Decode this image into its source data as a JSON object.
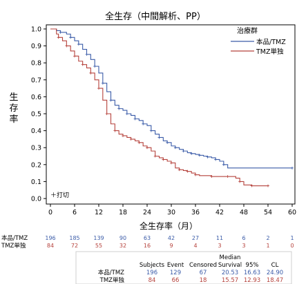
{
  "chart_data": {
    "type": "line",
    "title": "全生存（中間解析、PP）",
    "xlabel": "全生存率（月）",
    "ylabel": "生存率",
    "xlim": [
      0,
      60
    ],
    "ylim": [
      0,
      1.0
    ],
    "x_ticks": [
      "0",
      "6",
      "12",
      "18",
      "24",
      "30",
      "36",
      "42",
      "48",
      "54",
      "60"
    ],
    "y_ticks": [
      "0.0",
      "0.1",
      "0.2",
      "0.3",
      "0.4",
      "0.5",
      "0.6",
      "0.7",
      "0.8",
      "0.9",
      "1.0"
    ],
    "grid": false,
    "legend": {
      "title": "治療群",
      "placement": "top-right",
      "entries": [
        "本品/TMZ",
        "TMZ単独"
      ]
    },
    "censor_note": "＋打切",
    "colors": {
      "treatment": "#3a5ba8",
      "control": "#b5413b"
    },
    "series": [
      {
        "name": "本品/TMZ",
        "color": "#3a5ba8",
        "x": [
          0,
          1.5,
          2.5,
          4,
          5,
          6,
          7,
          8,
          9,
          10,
          11,
          12,
          13,
          14,
          15,
          16,
          17,
          18,
          19,
          20,
          21,
          22,
          23,
          24,
          25,
          26,
          27,
          28,
          29,
          30,
          31,
          32,
          33,
          34,
          35,
          36,
          37,
          38,
          39,
          40,
          41,
          42,
          43,
          44,
          60
        ],
        "y": [
          1.0,
          0.99,
          0.98,
          0.97,
          0.95,
          0.93,
          0.91,
          0.88,
          0.85,
          0.82,
          0.78,
          0.74,
          0.68,
          0.63,
          0.58,
          0.55,
          0.53,
          0.52,
          0.5,
          0.49,
          0.47,
          0.46,
          0.44,
          0.43,
          0.4,
          0.38,
          0.36,
          0.34,
          0.33,
          0.31,
          0.3,
          0.29,
          0.28,
          0.27,
          0.265,
          0.26,
          0.255,
          0.25,
          0.245,
          0.24,
          0.23,
          0.22,
          0.2,
          0.18,
          0.18
        ]
      },
      {
        "name": "TMZ単独",
        "color": "#b5413b",
        "x": [
          0,
          1.5,
          2,
          3,
          4,
          5,
          6,
          7,
          8,
          9,
          10,
          11,
          12,
          13,
          14,
          15,
          16,
          17,
          18,
          19,
          20,
          21,
          22,
          23,
          24,
          25,
          26,
          27,
          28,
          29,
          30,
          31,
          32,
          33,
          34,
          35,
          36,
          37,
          40,
          42,
          44,
          46,
          47,
          48,
          50,
          52,
          54
        ],
        "y": [
          1.0,
          0.97,
          0.95,
          0.93,
          0.9,
          0.87,
          0.84,
          0.81,
          0.79,
          0.77,
          0.74,
          0.7,
          0.65,
          0.58,
          0.5,
          0.44,
          0.4,
          0.38,
          0.37,
          0.36,
          0.35,
          0.34,
          0.33,
          0.31,
          0.3,
          0.28,
          0.25,
          0.24,
          0.23,
          0.22,
          0.21,
          0.18,
          0.17,
          0.165,
          0.16,
          0.15,
          0.14,
          0.135,
          0.13,
          0.13,
          0.13,
          0.12,
          0.1,
          0.08,
          0.075,
          0.075,
          0.075
        ]
      }
    ],
    "at_risk": {
      "times": [
        0,
        6,
        12,
        18,
        24,
        30,
        36,
        42,
        48,
        54,
        60
      ],
      "rows": [
        {
          "label": "本品/TMZ",
          "values": [
            "196",
            "185",
            "139",
            "90",
            "63",
            "42",
            "27",
            "11",
            "6",
            "2",
            "1"
          ]
        },
        {
          "label": "TMZ単独",
          "values": [
            "84",
            "72",
            "55",
            "32",
            "16",
            "9",
            "4",
            "3",
            "3",
            "1",
            "0"
          ]
        }
      ]
    },
    "summary_table": {
      "header_top": "Median",
      "headers": [
        "Subjects",
        "Event",
        "Censored",
        "Survival",
        "95%",
        "CL"
      ],
      "rows": [
        {
          "label": "本品/TMZ",
          "values": [
            "196",
            "129",
            "67",
            "20.53",
            "16.63",
            "24.90"
          ]
        },
        {
          "label": "TMZ単独",
          "values": [
            "84",
            "66",
            "18",
            "15.57",
            "12.93",
            "18.47"
          ]
        }
      ]
    }
  }
}
